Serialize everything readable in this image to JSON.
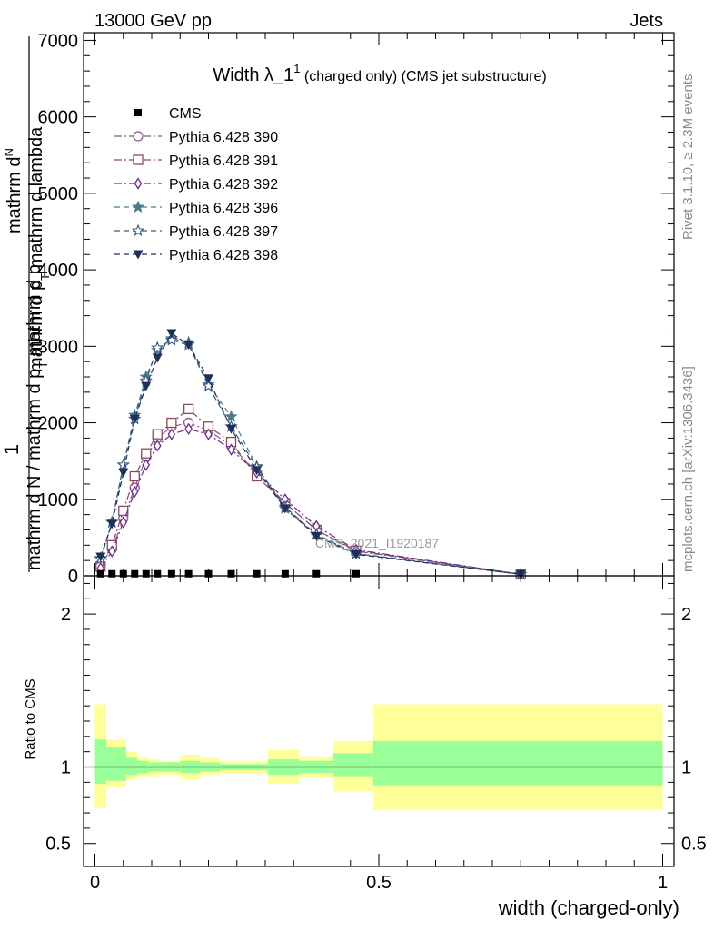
{
  "header": {
    "left": "13000 GeV pp",
    "right": "Jets"
  },
  "side_labels": {
    "rivet": "Rivet 3.1.10, ≥ 2.3M events",
    "mcplots": "mcplots.cern.ch [arXiv:1306.3436]"
  },
  "watermark": "CMS_2021_I1920187",
  "colors": {
    "p390": "#8b5a8b",
    "p391": "#8b4a5c",
    "p392": "#6a2a8a",
    "p396": "#4a7a8a",
    "p397": "#3a5a7a",
    "p398": "#1f2f5a",
    "band_stat": "#99ff99",
    "band_total": "#ffff99"
  },
  "chart_data": [
    {
      "type": "line",
      "title": "Width λ_1",
      "title_sup": "1",
      "title_suffix": " (charged only) (CMS jet substructure)",
      "ylabel_num_top": "mathrm d",
      "ylabel_num_n": "N",
      "ylabel_num_rest": "mathrm d p",
      "ylabel_num_t": "T",
      "ylabel_num_end": " mathrm d lambda",
      "ylabel_one": "1",
      "ylabel_den_a": "mathrm d N / mathrm d p",
      "ylabel_den_t": "T",
      "ylabel_den_b": " mathrm d p",
      "ylim": [
        0,
        7100
      ],
      "xlim": [
        -0.02,
        1.02
      ],
      "yticks": [
        0,
        1000,
        2000,
        3000,
        4000,
        5000,
        6000,
        7000
      ],
      "ytick_labels": [
        "0",
        "1000",
        "2000",
        "3000",
        "4000",
        "5000",
        "6000",
        "7000"
      ],
      "legend_position": "top-left",
      "cms": {
        "name": "CMS",
        "x": [
          0.01,
          0.03,
          0.05,
          0.07,
          0.09,
          0.11,
          0.135,
          0.165,
          0.2,
          0.24,
          0.285,
          0.335,
          0.39,
          0.46
        ],
        "y": [
          3,
          3,
          3,
          3,
          3,
          3,
          3,
          3,
          3,
          3,
          3,
          3,
          3,
          3
        ]
      },
      "series": [
        {
          "name": "Pythia 6.428 390",
          "marker": "circle",
          "color_key": "p390",
          "dash": "8,3,2,3",
          "x": [
            0.01,
            0.03,
            0.05,
            0.07,
            0.09,
            0.11,
            0.135,
            0.165,
            0.2,
            0.24,
            0.285,
            0.335,
            0.39,
            0.46,
            0.75
          ],
          "y": [
            150,
            350,
            750,
            1150,
            1550,
            1800,
            1950,
            2000,
            1900,
            1700,
            1350,
            950,
            600,
            320,
            20
          ]
        },
        {
          "name": "Pythia 6.428 391",
          "marker": "square",
          "color_key": "p391",
          "dash": "8,3,2,3",
          "x": [
            0.01,
            0.03,
            0.05,
            0.07,
            0.09,
            0.11,
            0.135,
            0.165,
            0.2,
            0.24,
            0.285,
            0.335,
            0.39,
            0.46,
            0.75
          ],
          "y": [
            120,
            400,
            850,
            1300,
            1600,
            1850,
            2000,
            2180,
            1950,
            1750,
            1300,
            950,
            600,
            330,
            20
          ]
        },
        {
          "name": "Pythia 6.428 392",
          "marker": "diamond",
          "color_key": "p392",
          "dash": "8,3,2,3",
          "x": [
            0.01,
            0.03,
            0.05,
            0.07,
            0.09,
            0.11,
            0.135,
            0.165,
            0.2,
            0.24,
            0.285,
            0.335,
            0.39,
            0.46,
            0.75
          ],
          "y": [
            100,
            320,
            700,
            1100,
            1450,
            1700,
            1850,
            1920,
            1850,
            1650,
            1350,
            1000,
            650,
            340,
            20
          ]
        },
        {
          "name": "Pythia 6.428 396",
          "marker": "star",
          "color_key": "p396",
          "dash": "6,4",
          "x": [
            0.01,
            0.03,
            0.05,
            0.07,
            0.09,
            0.11,
            0.135,
            0.165,
            0.2,
            0.24,
            0.285,
            0.335,
            0.39,
            0.46,
            0.75
          ],
          "y": [
            230,
            700,
            1450,
            2100,
            2600,
            2950,
            3100,
            3050,
            2500,
            2080,
            1430,
            880,
            540,
            290,
            20
          ]
        },
        {
          "name": "Pythia 6.428 397",
          "marker": "star-open",
          "color_key": "p397",
          "dash": "6,4",
          "x": [
            0.01,
            0.03,
            0.05,
            0.07,
            0.09,
            0.11,
            0.135,
            0.165,
            0.2,
            0.24,
            0.285,
            0.335,
            0.39,
            0.46,
            0.75
          ],
          "y": [
            220,
            700,
            1450,
            2050,
            2550,
            2980,
            3080,
            3020,
            2480,
            1950,
            1420,
            900,
            540,
            290,
            20
          ]
        },
        {
          "name": "Pythia 6.428 398",
          "marker": "triangle-down",
          "color_key": "p398",
          "dash": "6,4",
          "x": [
            0.01,
            0.03,
            0.05,
            0.07,
            0.09,
            0.11,
            0.135,
            0.165,
            0.2,
            0.24,
            0.285,
            0.335,
            0.39,
            0.46,
            0.75
          ],
          "y": [
            250,
            680,
            1350,
            2050,
            2480,
            2850,
            3170,
            3020,
            2580,
            1920,
            1380,
            880,
            520,
            280,
            20
          ]
        }
      ]
    },
    {
      "type": "area",
      "ylabel": "Ratio to CMS",
      "xlabel": "width (charged-only)",
      "xlim": [
        -0.02,
        1.02
      ],
      "ylim": [
        0.35,
        2.25
      ],
      "yticks": [
        0.5,
        1,
        2
      ],
      "ytick_labels": [
        "0.5",
        "1",
        "2"
      ],
      "xticks": [
        0,
        0.5,
        1
      ],
      "xtick_labels": [
        "0",
        "0.5",
        "1"
      ],
      "reference_line": 1,
      "bins": [
        {
          "lo": 0.0,
          "hi": 0.02,
          "stat": [
            0.89,
            1.18
          ],
          "total": [
            0.73,
            1.41
          ]
        },
        {
          "lo": 0.02,
          "hi": 0.055,
          "stat": [
            0.91,
            1.13
          ],
          "total": [
            0.87,
            1.18
          ]
        },
        {
          "lo": 0.055,
          "hi": 0.075,
          "stat": [
            0.95,
            1.06
          ],
          "total": [
            0.92,
            1.1
          ]
        },
        {
          "lo": 0.075,
          "hi": 0.095,
          "stat": [
            0.96,
            1.04
          ],
          "total": [
            0.94,
            1.06
          ]
        },
        {
          "lo": 0.095,
          "hi": 0.115,
          "stat": [
            0.97,
            1.03
          ],
          "total": [
            0.94,
            1.05
          ]
        },
        {
          "lo": 0.115,
          "hi": 0.15,
          "stat": [
            0.97,
            1.03
          ],
          "total": [
            0.95,
            1.04
          ]
        },
        {
          "lo": 0.15,
          "hi": 0.185,
          "stat": [
            0.96,
            1.04
          ],
          "total": [
            0.92,
            1.08
          ]
        },
        {
          "lo": 0.185,
          "hi": 0.22,
          "stat": [
            0.97,
            1.03
          ],
          "total": [
            0.95,
            1.06
          ]
        },
        {
          "lo": 0.22,
          "hi": 0.26,
          "stat": [
            0.98,
            1.02
          ],
          "total": [
            0.96,
            1.04
          ]
        },
        {
          "lo": 0.26,
          "hi": 0.305,
          "stat": [
            0.98,
            1.02
          ],
          "total": [
            0.96,
            1.04
          ]
        },
        {
          "lo": 0.305,
          "hi": 0.36,
          "stat": [
            0.95,
            1.05
          ],
          "total": [
            0.89,
            1.11
          ]
        },
        {
          "lo": 0.36,
          "hi": 0.42,
          "stat": [
            0.96,
            1.04
          ],
          "total": [
            0.93,
            1.07
          ]
        },
        {
          "lo": 0.42,
          "hi": 0.49,
          "stat": [
            0.94,
            1.09
          ],
          "total": [
            0.84,
            1.17
          ]
        },
        {
          "lo": 0.49,
          "hi": 1.0,
          "stat": [
            0.88,
            1.17
          ],
          "total": [
            0.72,
            1.41
          ]
        }
      ]
    }
  ]
}
